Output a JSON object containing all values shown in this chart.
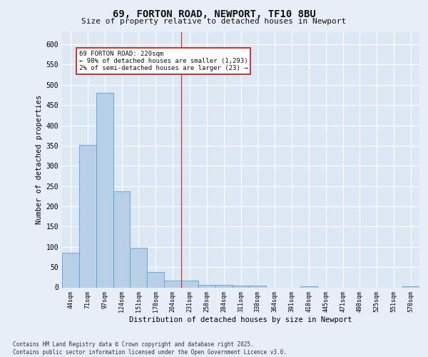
{
  "title1": "69, FORTON ROAD, NEWPORT, TF10 8BU",
  "title2": "Size of property relative to detached houses in Newport",
  "xlabel": "Distribution of detached houses by size in Newport",
  "ylabel": "Number of detached properties",
  "bar_color": "#b8cfe8",
  "bar_edge_color": "#5a9fd4",
  "background_color": "#dde8f5",
  "fig_background_color": "#e8eef8",
  "grid_color": "#ffffff",
  "annotation_box_color": "#ffffff",
  "annotation_border_color": "#cc2222",
  "categories": [
    "44sqm",
    "71sqm",
    "97sqm",
    "124sqm",
    "151sqm",
    "178sqm",
    "204sqm",
    "231sqm",
    "258sqm",
    "284sqm",
    "311sqm",
    "338sqm",
    "364sqm",
    "391sqm",
    "418sqm",
    "445sqm",
    "471sqm",
    "498sqm",
    "525sqm",
    "551sqm",
    "578sqm"
  ],
  "values": [
    86,
    352,
    480,
    237,
    97,
    38,
    16,
    16,
    6,
    6,
    4,
    4,
    0,
    0,
    2,
    0,
    0,
    0,
    0,
    0,
    2
  ],
  "ylim": [
    0,
    630
  ],
  "yticks": [
    0,
    50,
    100,
    150,
    200,
    250,
    300,
    350,
    400,
    450,
    500,
    550,
    600
  ],
  "vline_position": 6.5,
  "vline_color": "#cc3333",
  "annotation_text": "69 FORTON ROAD: 220sqm\n← 98% of detached houses are smaller (1,293)\n2% of semi-detached houses are larger (23) →",
  "footer_text": "Contains HM Land Registry data © Crown copyright and database right 2025.\nContains public sector information licensed under the Open Government Licence v3.0."
}
